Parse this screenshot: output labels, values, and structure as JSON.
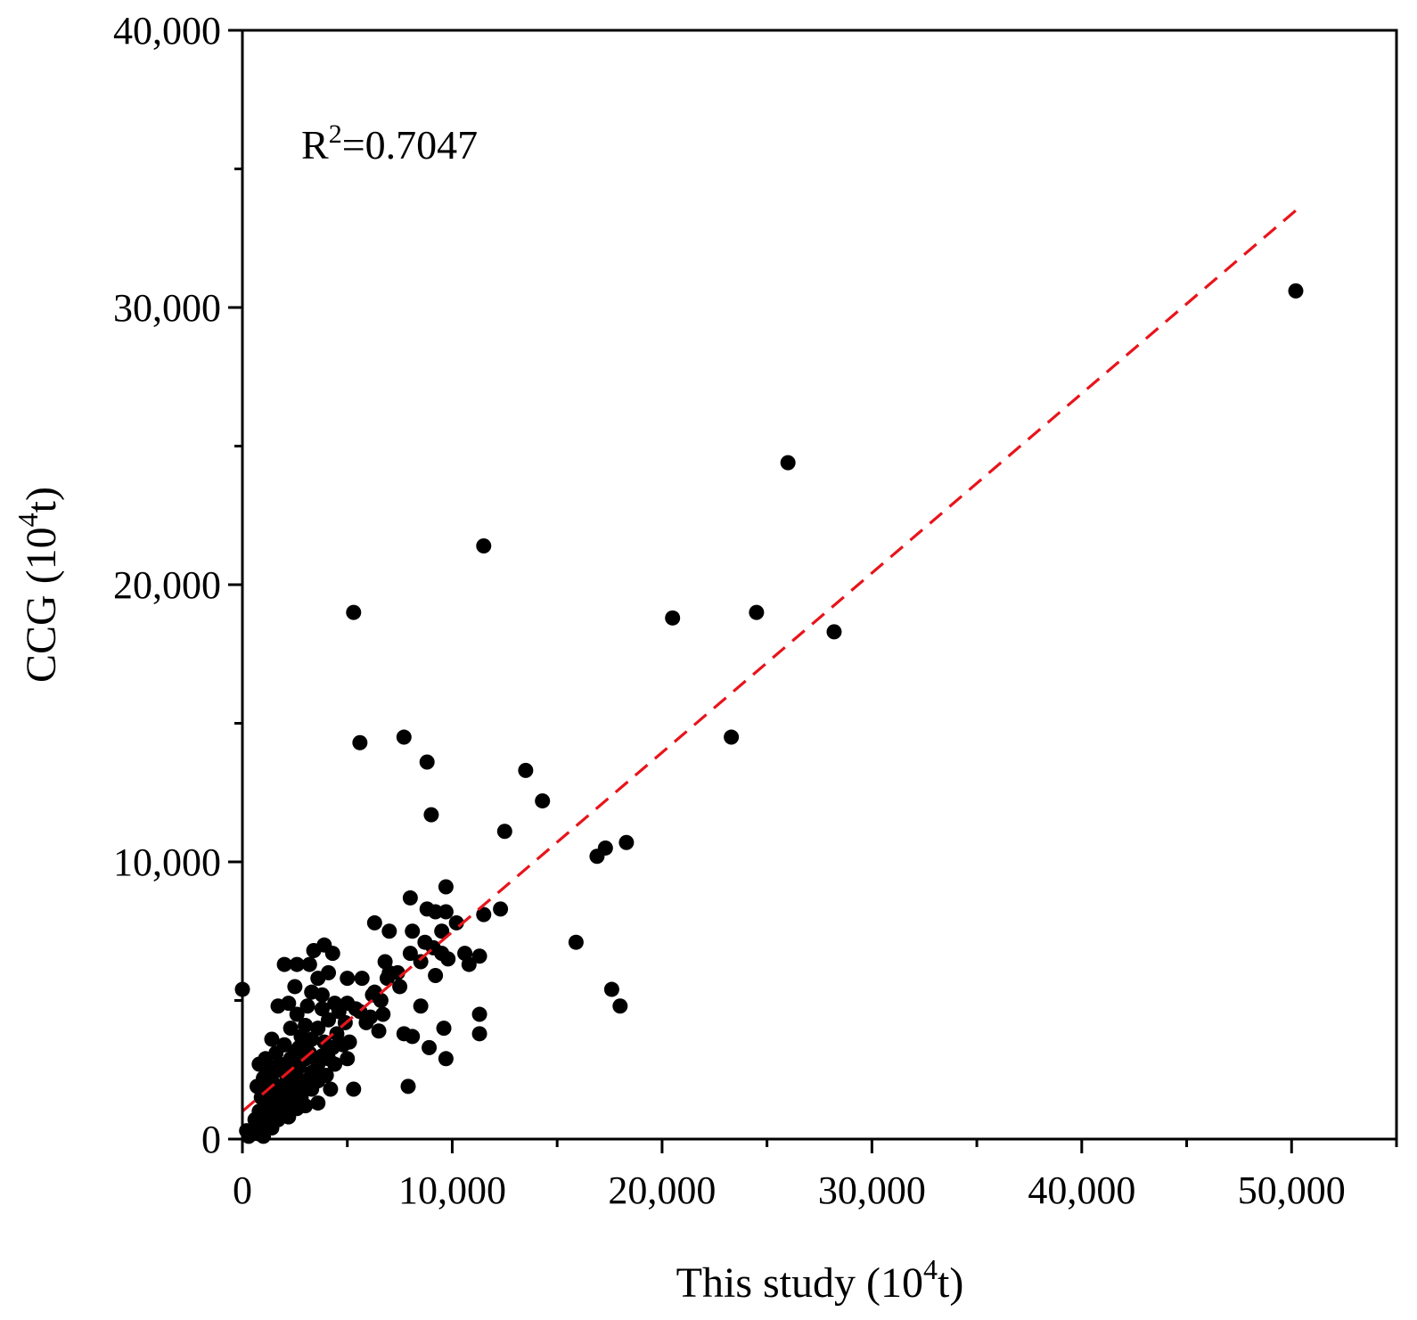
{
  "chart_data": {
    "type": "scatter",
    "xlabel": {
      "main": "This study (10",
      "sup": "4",
      "tail": "t)"
    },
    "ylabel": {
      "main": "CCG (10",
      "sup": "4",
      "tail": "t)"
    },
    "xlim": [
      0,
      55000
    ],
    "ylim": [
      0,
      40000
    ],
    "x_ticks": [
      0,
      10000,
      20000,
      30000,
      40000,
      50000
    ],
    "x_tick_labels": [
      "0",
      "10,000",
      "20,000",
      "30,000",
      "40,000",
      "50,000"
    ],
    "x_minor_ticks": [
      5000,
      15000,
      25000,
      35000,
      45000,
      55000
    ],
    "y_ticks": [
      0,
      10000,
      20000,
      30000,
      40000
    ],
    "y_tick_labels": [
      "0",
      "10,000",
      "20,000",
      "30,000",
      "40,000"
    ],
    "y_minor_ticks": [
      5000,
      15000,
      25000,
      35000
    ],
    "grid": false,
    "annotation": {
      "main": "R",
      "sup": "2",
      "tail": "=0.7047"
    },
    "fit_line": {
      "x": [
        0,
        50200
      ],
      "y": [
        1000,
        33500
      ],
      "color": "#e8141b",
      "style": "dashed"
    },
    "marker_color": "#000000",
    "points": [
      [
        50200,
        30600
      ],
      [
        26000,
        24400
      ],
      [
        11500,
        21400
      ],
      [
        5300,
        19000
      ],
      [
        20500,
        18800
      ],
      [
        24500,
        19000
      ],
      [
        28200,
        18300
      ],
      [
        23300,
        14500
      ],
      [
        7700,
        14500
      ],
      [
        5600,
        14300
      ],
      [
        8800,
        13600
      ],
      [
        13500,
        13300
      ],
      [
        14300,
        12200
      ],
      [
        9000,
        11700
      ],
      [
        12500,
        11100
      ],
      [
        18300,
        10700
      ],
      [
        17300,
        10500
      ],
      [
        16900,
        10200
      ],
      [
        9700,
        9100
      ],
      [
        8000,
        8700
      ],
      [
        8800,
        8300
      ],
      [
        9200,
        8200
      ],
      [
        9700,
        8200
      ],
      [
        11500,
        8100
      ],
      [
        12300,
        8300
      ],
      [
        10200,
        7800
      ],
      [
        9500,
        7500
      ],
      [
        6300,
        7800
      ],
      [
        7000,
        7500
      ],
      [
        8100,
        7500
      ],
      [
        8700,
        7100
      ],
      [
        9100,
        6900
      ],
      [
        15900,
        7100
      ],
      [
        10600,
        6700
      ],
      [
        11300,
        6600
      ],
      [
        8000,
        6700
      ],
      [
        8500,
        6400
      ],
      [
        9500,
        6700
      ],
      [
        10800,
        6300
      ],
      [
        9800,
        6500
      ],
      [
        9200,
        5900
      ],
      [
        6800,
        6400
      ],
      [
        7400,
        6000
      ],
      [
        6900,
        5800
      ],
      [
        7500,
        5500
      ],
      [
        5700,
        5800
      ],
      [
        5000,
        5800
      ],
      [
        6300,
        5300
      ],
      [
        6600,
        5000
      ],
      [
        6700,
        4500
      ],
      [
        5400,
        4700
      ],
      [
        6100,
        4400
      ],
      [
        5900,
        4200
      ],
      [
        17600,
        5400
      ],
      [
        18000,
        4800
      ],
      [
        11300,
        4500
      ],
      [
        8500,
        4800
      ],
      [
        9600,
        4000
      ],
      [
        6500,
        3900
      ],
      [
        7700,
        3800
      ],
      [
        8100,
        3700
      ],
      [
        11300,
        3800
      ],
      [
        8900,
        3300
      ],
      [
        9700,
        2900
      ],
      [
        7900,
        1900
      ],
      [
        5300,
        1800
      ],
      [
        3600,
        1300
      ],
      [
        0,
        5400
      ],
      [
        3900,
        7000
      ],
      [
        3400,
        6800
      ],
      [
        4300,
        6700
      ],
      [
        2000,
        6300
      ],
      [
        2600,
        6300
      ],
      [
        3200,
        6300
      ],
      [
        4100,
        6000
      ],
      [
        3600,
        5800
      ],
      [
        2500,
        5500
      ],
      [
        3800,
        5200
      ],
      [
        3300,
        5300
      ],
      [
        4400,
        4900
      ],
      [
        5000,
        4900
      ],
      [
        2200,
        4900
      ],
      [
        3100,
        4800
      ],
      [
        1700,
        4800
      ],
      [
        3800,
        4700
      ],
      [
        4600,
        4600
      ],
      [
        2600,
        4500
      ],
      [
        4100,
        4300
      ],
      [
        3000,
        4100
      ],
      [
        3600,
        4000
      ],
      [
        4900,
        4200
      ],
      [
        2300,
        4000
      ],
      [
        1400,
        3600
      ],
      [
        2800,
        3700
      ],
      [
        3300,
        3600
      ],
      [
        3900,
        3500
      ],
      [
        4800,
        3400
      ],
      [
        5100,
        3500
      ],
      [
        2000,
        3400
      ],
      [
        4300,
        3300
      ],
      [
        1100,
        2900
      ],
      [
        1600,
        3100
      ],
      [
        2500,
        3100
      ],
      [
        3200,
        3100
      ],
      [
        5000,
        2900
      ],
      [
        4400,
        2700
      ],
      [
        800,
        2700
      ],
      [
        1300,
        2600
      ],
      [
        2200,
        2700
      ],
      [
        3600,
        2700
      ],
      [
        2700,
        2600
      ],
      [
        1700,
        2500
      ],
      [
        3300,
        2400
      ],
      [
        2100,
        2300
      ],
      [
        4000,
        2300
      ],
      [
        1000,
        2200
      ],
      [
        1400,
        2100
      ],
      [
        2900,
        2100
      ],
      [
        3600,
        2100
      ],
      [
        2400,
        2000
      ],
      [
        700,
        1900
      ],
      [
        1800,
        1900
      ],
      [
        2600,
        1800
      ],
      [
        3300,
        1800
      ],
      [
        4200,
        1800
      ],
      [
        1200,
        1700
      ],
      [
        2100,
        1600
      ],
      [
        2800,
        1500
      ],
      [
        900,
        1500
      ],
      [
        1600,
        1400
      ],
      [
        2300,
        1300
      ],
      [
        3000,
        1200
      ],
      [
        1100,
        1200
      ],
      [
        1900,
        1100
      ],
      [
        2600,
        1100
      ],
      [
        800,
        1000
      ],
      [
        1400,
        900
      ],
      [
        2200,
        800
      ],
      [
        1700,
        700
      ],
      [
        600,
        700
      ],
      [
        1100,
        600
      ],
      [
        900,
        400
      ],
      [
        1400,
        400
      ],
      [
        500,
        300
      ],
      [
        700,
        200
      ],
      [
        300,
        100
      ],
      [
        1000,
        100
      ],
      [
        200,
        300
      ],
      [
        1200,
        800
      ],
      [
        2400,
        2400
      ],
      [
        3000,
        2900
      ],
      [
        3500,
        2200
      ],
      [
        2000,
        1300
      ],
      [
        1500,
        1800
      ],
      [
        2700,
        3300
      ],
      [
        3800,
        3000
      ],
      [
        4500,
        3800
      ],
      [
        5600,
        4600
      ],
      [
        6200,
        5200
      ],
      [
        7000,
        6000
      ],
      [
        4100,
        2900
      ],
      [
        3100,
        3500
      ],
      [
        2300,
        2900
      ],
      [
        1300,
        2300
      ],
      [
        1800,
        2700
      ]
    ]
  }
}
